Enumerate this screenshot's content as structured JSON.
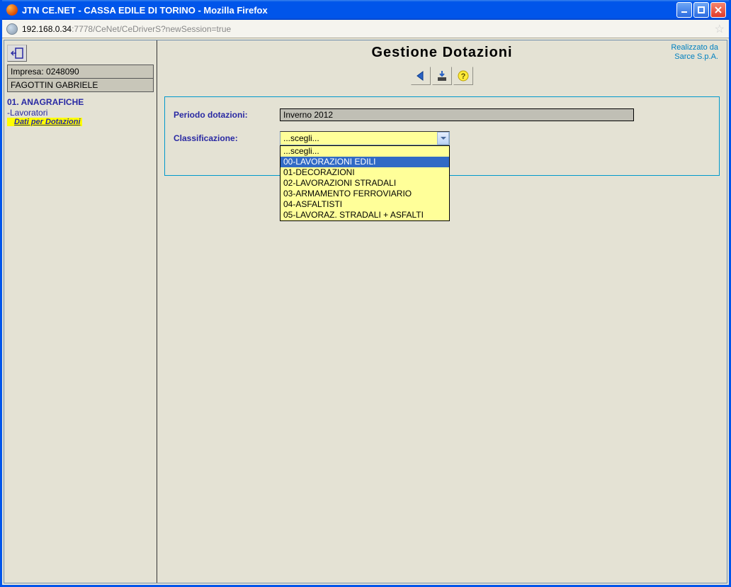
{
  "window": {
    "title": "JTN CE.NET - CASSA EDILE DI TORINO - Mozilla Firefox"
  },
  "address": {
    "host": "192.168.0.34",
    "path": ":7778/CeNet/CeDriverS?newSession=true"
  },
  "sidebar": {
    "impresa_label": "Impresa: 0248090",
    "impresa_name": "FAGOTTIN GABRIELE",
    "section_title": "01. ANAGRAFICHE",
    "link1": "-Lavoratori",
    "active": "Dati per Dotazioni"
  },
  "main": {
    "title": "Gestione Dotazioni",
    "credit_line1": "Realizzato da",
    "credit_line2": "Sarce S.p.A."
  },
  "form": {
    "periodo_label": "Periodo dotazioni:",
    "periodo_value": "Inverno 2012",
    "classif_label": "Classificazione:",
    "select_value": "...scegli...",
    "options": [
      {
        "text": "...scegli...",
        "hl": false
      },
      {
        "text": "00-LAVORAZIONI EDILI",
        "hl": true
      },
      {
        "text": "01-DECORAZIONI",
        "hl": false
      },
      {
        "text": "02-LAVORAZIONI STRADALI",
        "hl": false
      },
      {
        "text": "03-ARMAMENTO FERROVIARIO",
        "hl": false
      },
      {
        "text": "04-ASFALTISTI",
        "hl": false
      },
      {
        "text": "05-LAVORAZ. STRADALI + ASFALTI",
        "hl": false
      }
    ]
  }
}
